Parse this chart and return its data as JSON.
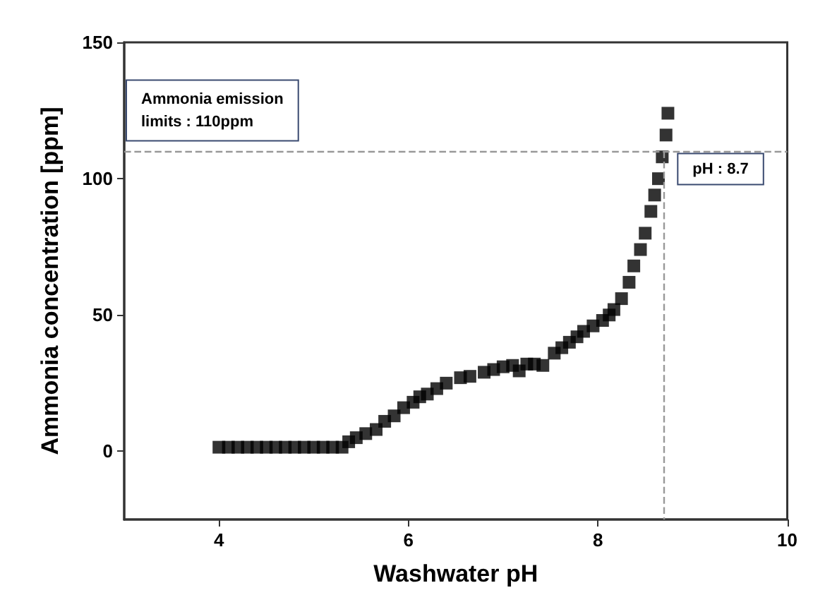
{
  "chart_data": {
    "type": "scatter",
    "xlabel": "Washwater pH",
    "ylabel": "Ammonia concentration [ppm]",
    "xlim": [
      3,
      10
    ],
    "xticks": [
      4,
      6,
      8,
      10
    ],
    "ylim": [
      -25,
      150
    ],
    "yticks": [
      0,
      50,
      100,
      150
    ],
    "marker": "square",
    "series": [
      {
        "color": "#000000",
        "x": [
          4.0,
          4.1,
          4.2,
          4.3,
          4.4,
          4.5,
          4.6,
          4.7,
          4.8,
          4.9,
          5.0,
          5.1,
          5.2,
          5.3,
          5.37,
          5.45,
          5.55,
          5.66,
          5.75,
          5.85,
          5.95,
          6.05,
          6.12,
          6.2,
          6.3,
          6.4,
          6.55,
          6.65,
          6.8,
          6.9,
          7.0,
          7.1,
          7.17,
          7.25,
          7.33,
          7.42,
          7.54,
          7.62,
          7.7,
          7.78,
          7.85,
          7.95,
          8.05,
          8.12,
          8.17,
          8.25,
          8.33,
          8.38,
          8.45,
          8.5,
          8.56,
          8.6,
          8.64,
          8.68,
          8.72,
          8.74
        ],
        "values": [
          1.5,
          1.5,
          1.5,
          1.5,
          1.5,
          1.5,
          1.5,
          1.5,
          1.5,
          1.5,
          1.5,
          1.5,
          1.5,
          1.5,
          3.5,
          5,
          6.5,
          8,
          11,
          13,
          16,
          18,
          20,
          21,
          23,
          25,
          27,
          27.5,
          29,
          30,
          31,
          31.5,
          29.5,
          32,
          32,
          31.5,
          36,
          38,
          40,
          42,
          44,
          46,
          48,
          50,
          52,
          56,
          62,
          68,
          74,
          80,
          88,
          94,
          100,
          108,
          116,
          124
        ]
      }
    ],
    "ref_lines": [
      {
        "axis": "y",
        "value": 110,
        "label": "Ammonia emission\nlimits : 110ppm",
        "color": "#999999",
        "line_style": "dashed"
      },
      {
        "axis": "x",
        "value": 8.7,
        "label": "pH : 8.7",
        "color": "#999999",
        "line_style": "dashed"
      }
    ]
  }
}
